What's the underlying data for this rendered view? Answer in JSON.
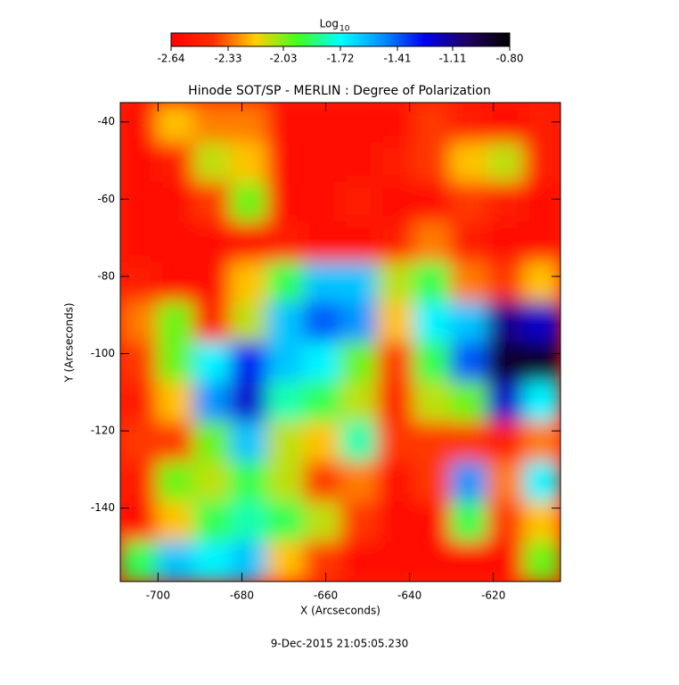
{
  "chart_data": {
    "type": "heatmap",
    "title": "Hinode SOT/SP - MERLIN : Degree of Polarization",
    "xlabel": "X (Arcseconds)",
    "ylabel": "Y (Arcseconds)",
    "annotation": "9-Dec-2015 21:05:05.230",
    "colorbar": {
      "title": "Log",
      "subscript": "10",
      "zlim": [
        -2.64,
        -0.8
      ],
      "ticks": [
        -2.64,
        -2.33,
        -2.03,
        -1.72,
        -1.41,
        -1.11,
        {
          "value": -0.8,
          "label": "-0.80"
        }
      ]
    },
    "colormap": [
      "#ff0000",
      "#ff3000",
      "#ffd000",
      "#40ff20",
      "#00ffff",
      "#0090ff",
      "#0000f0",
      "#200060",
      "#000000"
    ],
    "xlim": [
      -709,
      -604
    ],
    "ylim": [
      -159,
      -35
    ],
    "xticks": [
      -700,
      -680,
      -660,
      -640,
      -620
    ],
    "yticks": [
      -40,
      -60,
      -80,
      -100,
      -120,
      -140
    ],
    "x": [
      -704.6,
      -695.9,
      -687.1,
      -678.4,
      -669.6,
      -660.9,
      -652.1,
      -643.4,
      -634.6,
      -625.9,
      -617.1,
      -608.4
    ],
    "y": [
      -40.2,
      -50.5,
      -60.8,
      -71.2,
      -81.5,
      -91.8,
      -102.2,
      -112.5,
      -122.8,
      -133.2,
      -143.5,
      -153.8
    ],
    "z": [
      [
        -2.6,
        -2.2,
        -2.3,
        -2.3,
        -2.6,
        -2.6,
        -2.6,
        -2.6,
        -2.4,
        -2.5,
        -2.6,
        -2.5
      ],
      [
        -2.6,
        -2.5,
        -2.1,
        -2.2,
        -2.6,
        -2.6,
        -2.6,
        -2.5,
        -2.4,
        -2.2,
        -2.1,
        -2.5
      ],
      [
        -2.6,
        -2.6,
        -2.4,
        -2.0,
        -2.6,
        -2.6,
        -2.5,
        -2.6,
        -2.6,
        -2.4,
        -2.5,
        -2.6
      ],
      [
        -2.6,
        -2.6,
        -2.6,
        -2.6,
        -2.5,
        -2.6,
        -2.6,
        -2.5,
        -2.3,
        -2.5,
        -2.6,
        -2.6
      ],
      [
        -2.5,
        -2.6,
        -2.6,
        -2.2,
        -1.9,
        -1.6,
        -1.6,
        -2.1,
        -1.9,
        -2.3,
        -2.4,
        -2.2
      ],
      [
        -2.3,
        -2.0,
        -2.5,
        -2.1,
        -1.6,
        -1.4,
        -1.5,
        -2.2,
        -1.7,
        -1.6,
        -1.1,
        -1.2
      ],
      [
        -2.4,
        -2.0,
        -1.7,
        -1.3,
        -1.6,
        -1.7,
        -2.0,
        -2.4,
        -1.9,
        -1.4,
        -0.9,
        -0.9
      ],
      [
        -2.5,
        -2.2,
        -1.5,
        -1.2,
        -1.8,
        -1.9,
        -2.1,
        -2.5,
        -2.1,
        -2.0,
        -1.2,
        -1.7
      ],
      [
        -2.4,
        -2.4,
        -2.0,
        -1.6,
        -2.1,
        -2.2,
        -1.8,
        -2.4,
        -2.4,
        -2.4,
        -2.5,
        -2.3
      ],
      [
        -2.5,
        -2.0,
        -2.1,
        -1.9,
        -2.1,
        -2.4,
        -2.3,
        -2.6,
        -2.4,
        -1.5,
        -2.3,
        -1.7
      ],
      [
        -2.6,
        -2.2,
        -1.9,
        -1.8,
        -1.9,
        -2.1,
        -2.4,
        -2.6,
        -2.6,
        -1.9,
        -2.4,
        -2.2
      ],
      [
        -1.9,
        -1.6,
        -1.7,
        -1.6,
        -2.2,
        -2.4,
        -2.6,
        -2.6,
        -2.6,
        -2.6,
        -2.6,
        -2.0
      ]
    ]
  }
}
